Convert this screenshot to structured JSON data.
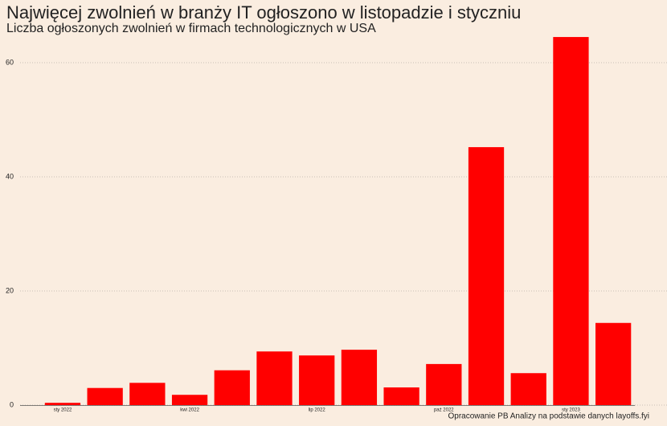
{
  "chart_data": {
    "type": "bar",
    "title": "Najwięcej zwolnień w branży IT ogłoszono w listopadzie i styczniu",
    "subtitle": "Liczba ogłoszonych zwolnień w firmach technologicznych w USA",
    "caption": "Opracowanie PB Analizy na podstawie danych layoffs.fyi",
    "categories": [
      "sty 2022",
      null,
      null,
      "kwi 2022",
      null,
      null,
      "lip 2022",
      null,
      null,
      "paź 2022",
      null,
      null,
      "sty 2023",
      null
    ],
    "values": [
      0.4,
      3.0,
      3.9,
      1.8,
      6.1,
      9.4,
      8.7,
      9.7,
      3.1,
      7.2,
      45.2,
      5.6,
      64.5,
      14.4
    ],
    "color": "#ff0000",
    "ylim": [
      0,
      66
    ],
    "yticks": [
      0,
      20,
      40,
      60
    ],
    "grid": true
  }
}
